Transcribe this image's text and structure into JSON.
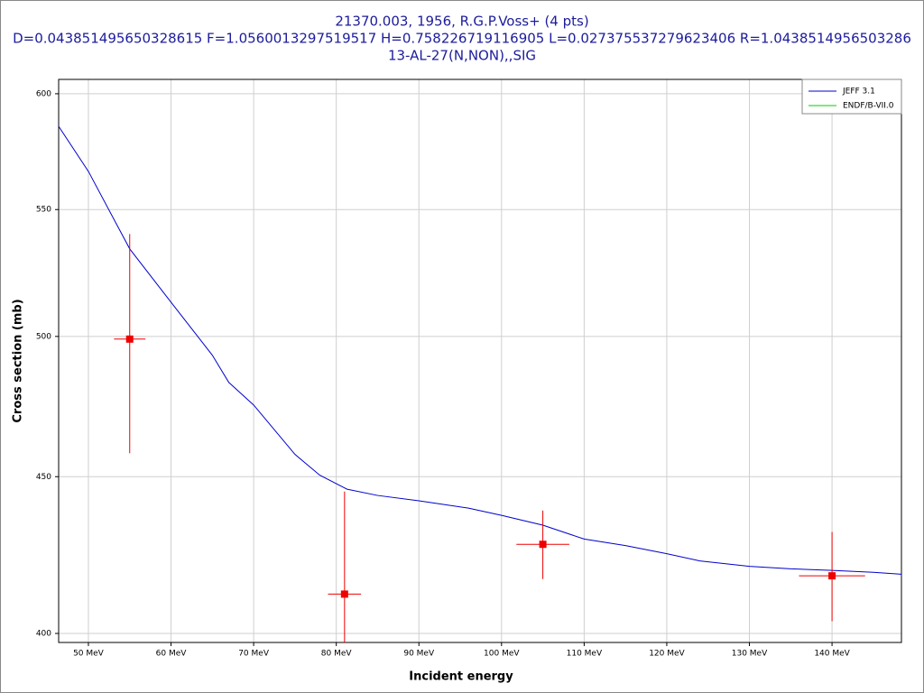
{
  "chart_data": {
    "type": "errorbar",
    "title": [
      "21370.003, 1956, R.G.P.Voss+ (4 pts)",
      "D=0.043851495650328615 F=1.0560013297519517 H=0.758226719116905 L=0.027375537279623406 R=1.0438514956503286",
      "13-AL-27(N,NON),,SIG"
    ],
    "xlabel": "Incident energy",
    "ylabel": "Cross section (mb)",
    "xlim": [
      46.4,
      148.4
    ],
    "ylim": [
      397.3,
      606.5
    ],
    "log_y": true,
    "grid": true,
    "legend": "upper right",
    "xticks": [
      {
        "value": 50,
        "label": "50 MeV"
      },
      {
        "value": 60,
        "label": "60 MeV"
      },
      {
        "value": 70,
        "label": "70 MeV"
      },
      {
        "value": 80,
        "label": "80 MeV"
      },
      {
        "value": 90,
        "label": "90 MeV"
      },
      {
        "value": 100,
        "label": "100 MeV"
      },
      {
        "value": 110,
        "label": "110 MeV"
      },
      {
        "value": 120,
        "label": "120 MeV"
      },
      {
        "value": 130,
        "label": "130 MeV"
      },
      {
        "value": 140,
        "label": "140 MeV"
      }
    ],
    "yticks": [
      400,
      450,
      500,
      550,
      600
    ],
    "series": [
      {
        "name": "JEFF 3.1",
        "color": "#0000cc",
        "x": [
          46.4,
          50,
          55,
          60,
          65,
          67,
          70,
          75,
          78,
          81.3,
          85,
          90,
          96,
          100,
          105,
          110,
          115,
          120,
          124,
          130,
          135,
          140,
          145,
          148.4
        ],
        "y": [
          585.5,
          566,
          534,
          513,
          493,
          483,
          474.9,
          457.6,
          450.5,
          445.8,
          443.7,
          441.9,
          439.5,
          437.1,
          433.9,
          429.4,
          427.3,
          424.7,
          422.4,
          420.7,
          419.9,
          419.4,
          418.8,
          418.2
        ]
      },
      {
        "name": "ENDF/B-VII.0",
        "color": "#00cc00",
        "x": [],
        "y": []
      }
    ],
    "points": {
      "color": "#ee0000",
      "x": [
        55,
        81,
        105,
        140
      ],
      "y": [
        499,
        412,
        427.7,
        417.7
      ],
      "xerr": [
        1.9,
        2,
        3.2,
        4
      ],
      "yerr": [
        41,
        33,
        11,
        14
      ]
    }
  }
}
